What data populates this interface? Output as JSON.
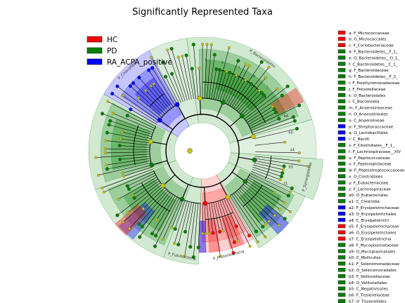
{
  "title": "Significantly Represented Taxa",
  "colors": {
    "HC": "#ff0000",
    "PD": "#008000",
    "RA_ACPA_positive": "#0000ff",
    "node_default": "#c8c800",
    "edge": "#000000"
  },
  "legend": [
    {
      "label": "HC",
      "color": "#ff0000"
    },
    {
      "label": "PD",
      "color": "#008000"
    },
    {
      "label": "RA_ACPA_positive",
      "color": "#0000ff"
    }
  ],
  "taxa_key": [
    {
      "text": "a: F_Micrococcaceae",
      "group": "HC"
    },
    {
      "text": "b: O_Micrococcales",
      "group": "HC"
    },
    {
      "text": "c: F_Coriobacteriaceae",
      "group": "HC"
    },
    {
      "text": "d: F_Bacteroidetes__F_1_",
      "group": "PD"
    },
    {
      "text": "e: O_Bacteroidetes__O_1_",
      "group": "PD"
    },
    {
      "text": "f: C_Bacteroidetes__C_1_",
      "group": "PD"
    },
    {
      "text": "g: F_Bacteroidaceae",
      "group": "PD"
    },
    {
      "text": "h: F_Bacteroidetes__F_2_",
      "group": "PD"
    },
    {
      "text": "i: F_Porphyromonadaceae",
      "group": "PD"
    },
    {
      "text": "j: F_Prevotellaceae",
      "group": "PD"
    },
    {
      "text": "k: O_Bacteroidales",
      "group": "PD"
    },
    {
      "text": "l: C_Bacteroidia",
      "group": "PD"
    },
    {
      "text": "m: F_Anaerolineaceae",
      "group": "PD"
    },
    {
      "text": "n: O_Anaerolineales",
      "group": "PD"
    },
    {
      "text": "o: C_Anaerolineae",
      "group": "PD"
    },
    {
      "text": "p: F_Streptococcaceae",
      "group": "RA_ACPA_positive"
    },
    {
      "text": "q: O_Lactobacillales",
      "group": "RA_ACPA_positive"
    },
    {
      "text": "r: C_Bacilli",
      "group": "RA_ACPA_positive"
    },
    {
      "text": "s: F_Clostridiales__F_1_",
      "group": "PD"
    },
    {
      "text": "t: F_Lachnospiraceae__XIV",
      "group": "PD"
    },
    {
      "text": "u: F_Peptococcaceae",
      "group": "PD"
    },
    {
      "text": "v: F_Peptoniphilaceae",
      "group": "PD"
    },
    {
      "text": "w: F_Peptostreptococcaceae",
      "group": "PD"
    },
    {
      "text": "x: O_Clostridiales",
      "group": "PD"
    },
    {
      "text": "y: F_Eubacteriaceae",
      "group": "PD"
    },
    {
      "text": "z: F_Lachnospiraceae",
      "group": "PD"
    },
    {
      "text": "a0: O_Eubacteriales",
      "group": "PD"
    },
    {
      "text": "a1: C_Clostridia",
      "group": "PD"
    },
    {
      "text": "a2: F_Erysipelotrichaceae",
      "group": "RA_ACPA_positive"
    },
    {
      "text": "a3: O_Erysipelotrichales",
      "group": "RA_ACPA_positive"
    },
    {
      "text": "a4: C_Erysipelotrichi",
      "group": "RA_ACPA_positive"
    },
    {
      "text": "a5: F_Erysipelotrichaceae",
      "group": "HC"
    },
    {
      "text": "a6: O_Erysipelotrichales",
      "group": "HC"
    },
    {
      "text": "a7: C_Erysipelotrichia",
      "group": "HC"
    },
    {
      "text": "a8: F_Mycoplasmataceae",
      "group": "PD"
    },
    {
      "text": "a9: O_Mycoplasmatales",
      "group": "PD"
    },
    {
      "text": "b0: C_Mollicutes",
      "group": "PD"
    },
    {
      "text": "b1: F_Selenomonadaceae",
      "group": "PD"
    },
    {
      "text": "b2: O_Selenomonadales",
      "group": "PD"
    },
    {
      "text": "b3: F_Veillonellaceae",
      "group": "PD"
    },
    {
      "text": "b4: O_Veillonellales",
      "group": "PD"
    },
    {
      "text": "b5: C_Negativicutes",
      "group": "PD"
    },
    {
      "text": "b6: F_Tissierellaceae",
      "group": "PD"
    },
    {
      "text": "b7: O_Tissierellales",
      "group": "PD"
    }
  ],
  "phyla": [
    {
      "name": "P_Bacteroidetes",
      "group": "PD",
      "a0": -98,
      "a1": -16
    },
    {
      "name": "P_Synergistetes",
      "group": "PD",
      "a0": 4,
      "a1": 24
    },
    {
      "name": "P_Proteobacteria",
      "group": "HC",
      "a0": 60,
      "a1": 92
    },
    {
      "name": "P_Fusobacteria",
      "group": "PD",
      "a0": 92,
      "a1": 110
    },
    {
      "name": "P_Chloroflexi",
      "group": "RA_ACPA_positive",
      "a0": -148,
      "a1": -118
    }
  ],
  "clade_labels": [
    "l",
    "k",
    "f",
    "e",
    "j",
    "i",
    "a4",
    "b0",
    "a1",
    "b5",
    "t1",
    "o",
    "x"
  ]
}
